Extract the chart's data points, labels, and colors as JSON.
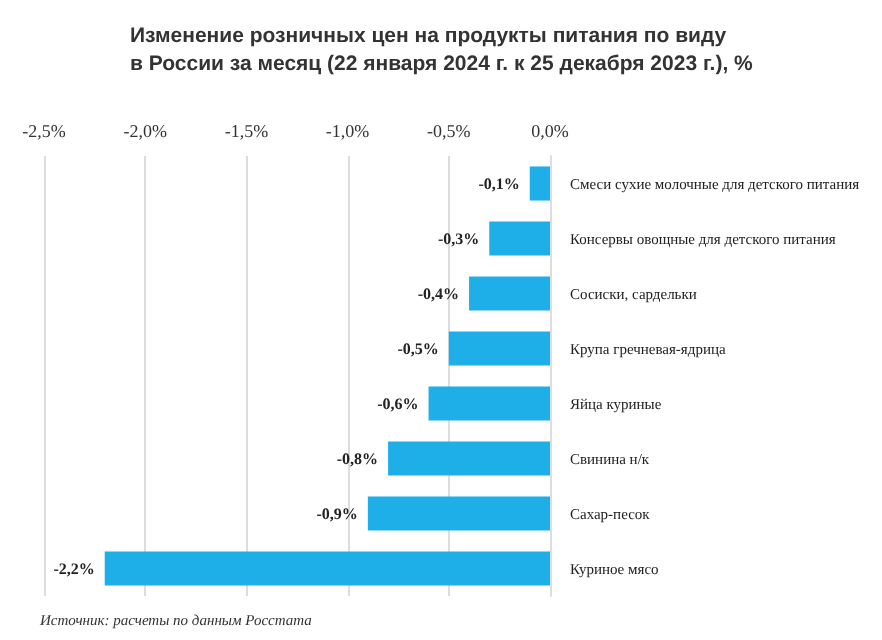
{
  "chart_data": {
    "type": "bar",
    "orientation": "horizontal",
    "title": "Изменение розничных цен на продукты питания по виду\nв России за месяц (22 января 2024 г. к 25 декабря 2023 г.), %",
    "categories": [
      "Смеси сухие молочные для детского питания",
      "Консервы овощные для детского питания",
      "Сосиски, сардельки",
      "Крупа гречневая-ядрица",
      "Яйца куриные",
      "Свинина н/к",
      "Сахар-песок",
      "Куриное мясо"
    ],
    "values": [
      -0.1,
      -0.3,
      -0.4,
      -0.5,
      -0.6,
      -0.8,
      -0.9,
      -2.2
    ],
    "value_labels": [
      "-0,1%",
      "-0,3%",
      "-0,4%",
      "-0,5%",
      "-0,6%",
      "-0,8%",
      "-0,9%",
      "-2,2%"
    ],
    "color": "#1eaee8",
    "xlim": [
      -2.5,
      0
    ],
    "xticks": [
      {
        "value": -2.5,
        "label": "-2,5%"
      },
      {
        "value": -2,
        "label": "-2,0%"
      },
      {
        "value": -1.5,
        "label": "-1,5%"
      },
      {
        "value": -1,
        "label": "-1,0%"
      },
      {
        "value": -0.5,
        "label": "-0,5%"
      },
      {
        "value": 0,
        "label": "0,0%"
      }
    ],
    "grid": "x",
    "annotations": [
      "Источник: расчеты по данным Росстата"
    ]
  }
}
